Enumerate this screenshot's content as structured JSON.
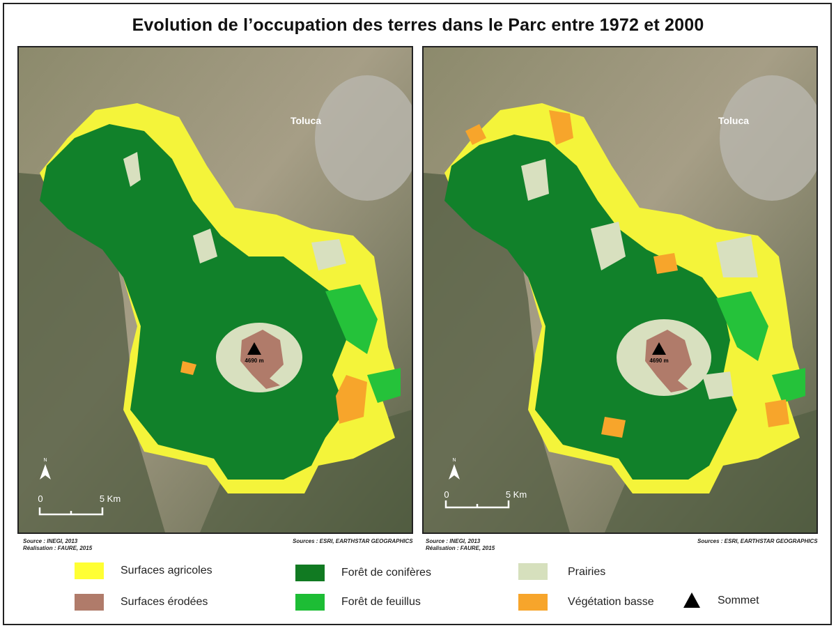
{
  "title": "Evolution de l’occupation des terres dans le Parc entre 1972 et 2000",
  "maps": [
    {
      "city_label": "Toluca",
      "summit_label": "4690 m",
      "north_label": "N",
      "scale_zero": "0",
      "scale_end": "5 Km",
      "source_left_1": "Source : INEGI, 2013",
      "source_left_2": "Réalisation : FAURE, 2015",
      "source_right": "Sources : ESRI, EARTHSTAR GEOGRAPHICS"
    },
    {
      "city_label": "Toluca",
      "summit_label": "4690 m",
      "north_label": "N",
      "scale_zero": "0",
      "scale_end": "5 Km",
      "source_left_1": "Source : INEGI, 2013",
      "source_left_2": "Réalisation : FAURE, 2015",
      "source_right": "Sources : ESRI, EARTHSTAR GEOGRAPHICS"
    }
  ],
  "legend": [
    {
      "label": "Surfaces agricoles",
      "color": "#ffff33"
    },
    {
      "label": "Forêt de conifères",
      "color": "#117a22"
    },
    {
      "label": "Prairies",
      "color": "#d6e0bd"
    },
    {
      "label": "Surfaces érodées",
      "color": "#b07b6a"
    },
    {
      "label": "Forêt de feuillus",
      "color": "#1dbd35"
    },
    {
      "label": "Végétation basse",
      "color": "#f7a52b"
    },
    {
      "label": "Sommet",
      "color": "#000000",
      "icon": "triangle-icon"
    }
  ]
}
